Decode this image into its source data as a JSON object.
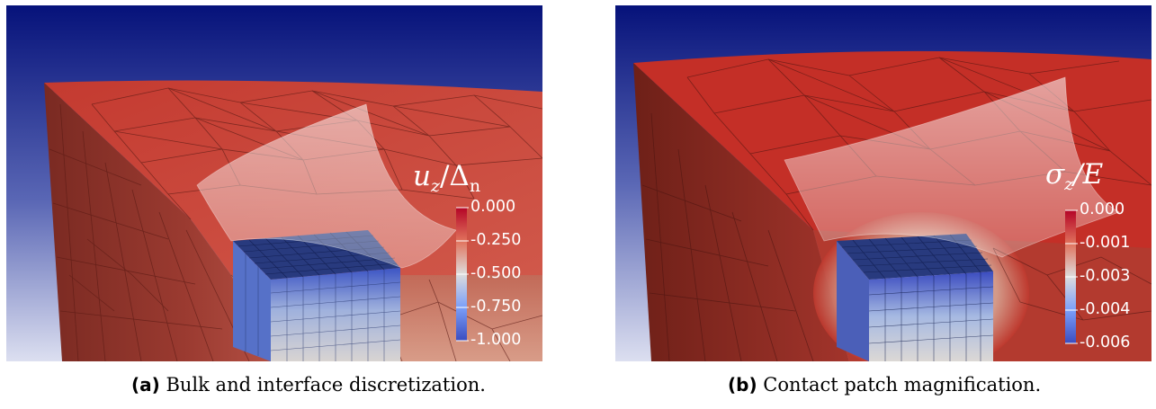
{
  "panels": [
    {
      "id": "a",
      "colorbar": {
        "title": "u_z/Δ_n",
        "title_main": "u",
        "title_sub": "z",
        "title_rest": "/Δ",
        "title_sub2": "n",
        "labels": [
          "0.000",
          "-0.250",
          "-0.500",
          "-0.750",
          "-1.000"
        ]
      },
      "caption": {
        "tag": "(a)",
        "text": "Bulk and interface discretization."
      }
    },
    {
      "id": "b",
      "colorbar": {
        "title": "σ_z/E",
        "title_main": "σ",
        "title_sub": "z",
        "title_rest": "/E",
        "labels": [
          "0.000",
          "-0.001",
          "-0.003",
          "-0.004",
          "-0.006"
        ]
      },
      "caption": {
        "tag": "(b)",
        "text": "Contact patch magnification."
      }
    }
  ],
  "colors": {
    "background_top": "#06127a",
    "background_bottom": "#d9dbee",
    "surface_red": "#c8372f",
    "colormap_high": "#b40426",
    "colormap_mid": "#dddcdc",
    "colormap_low": "#3b4cc0"
  }
}
